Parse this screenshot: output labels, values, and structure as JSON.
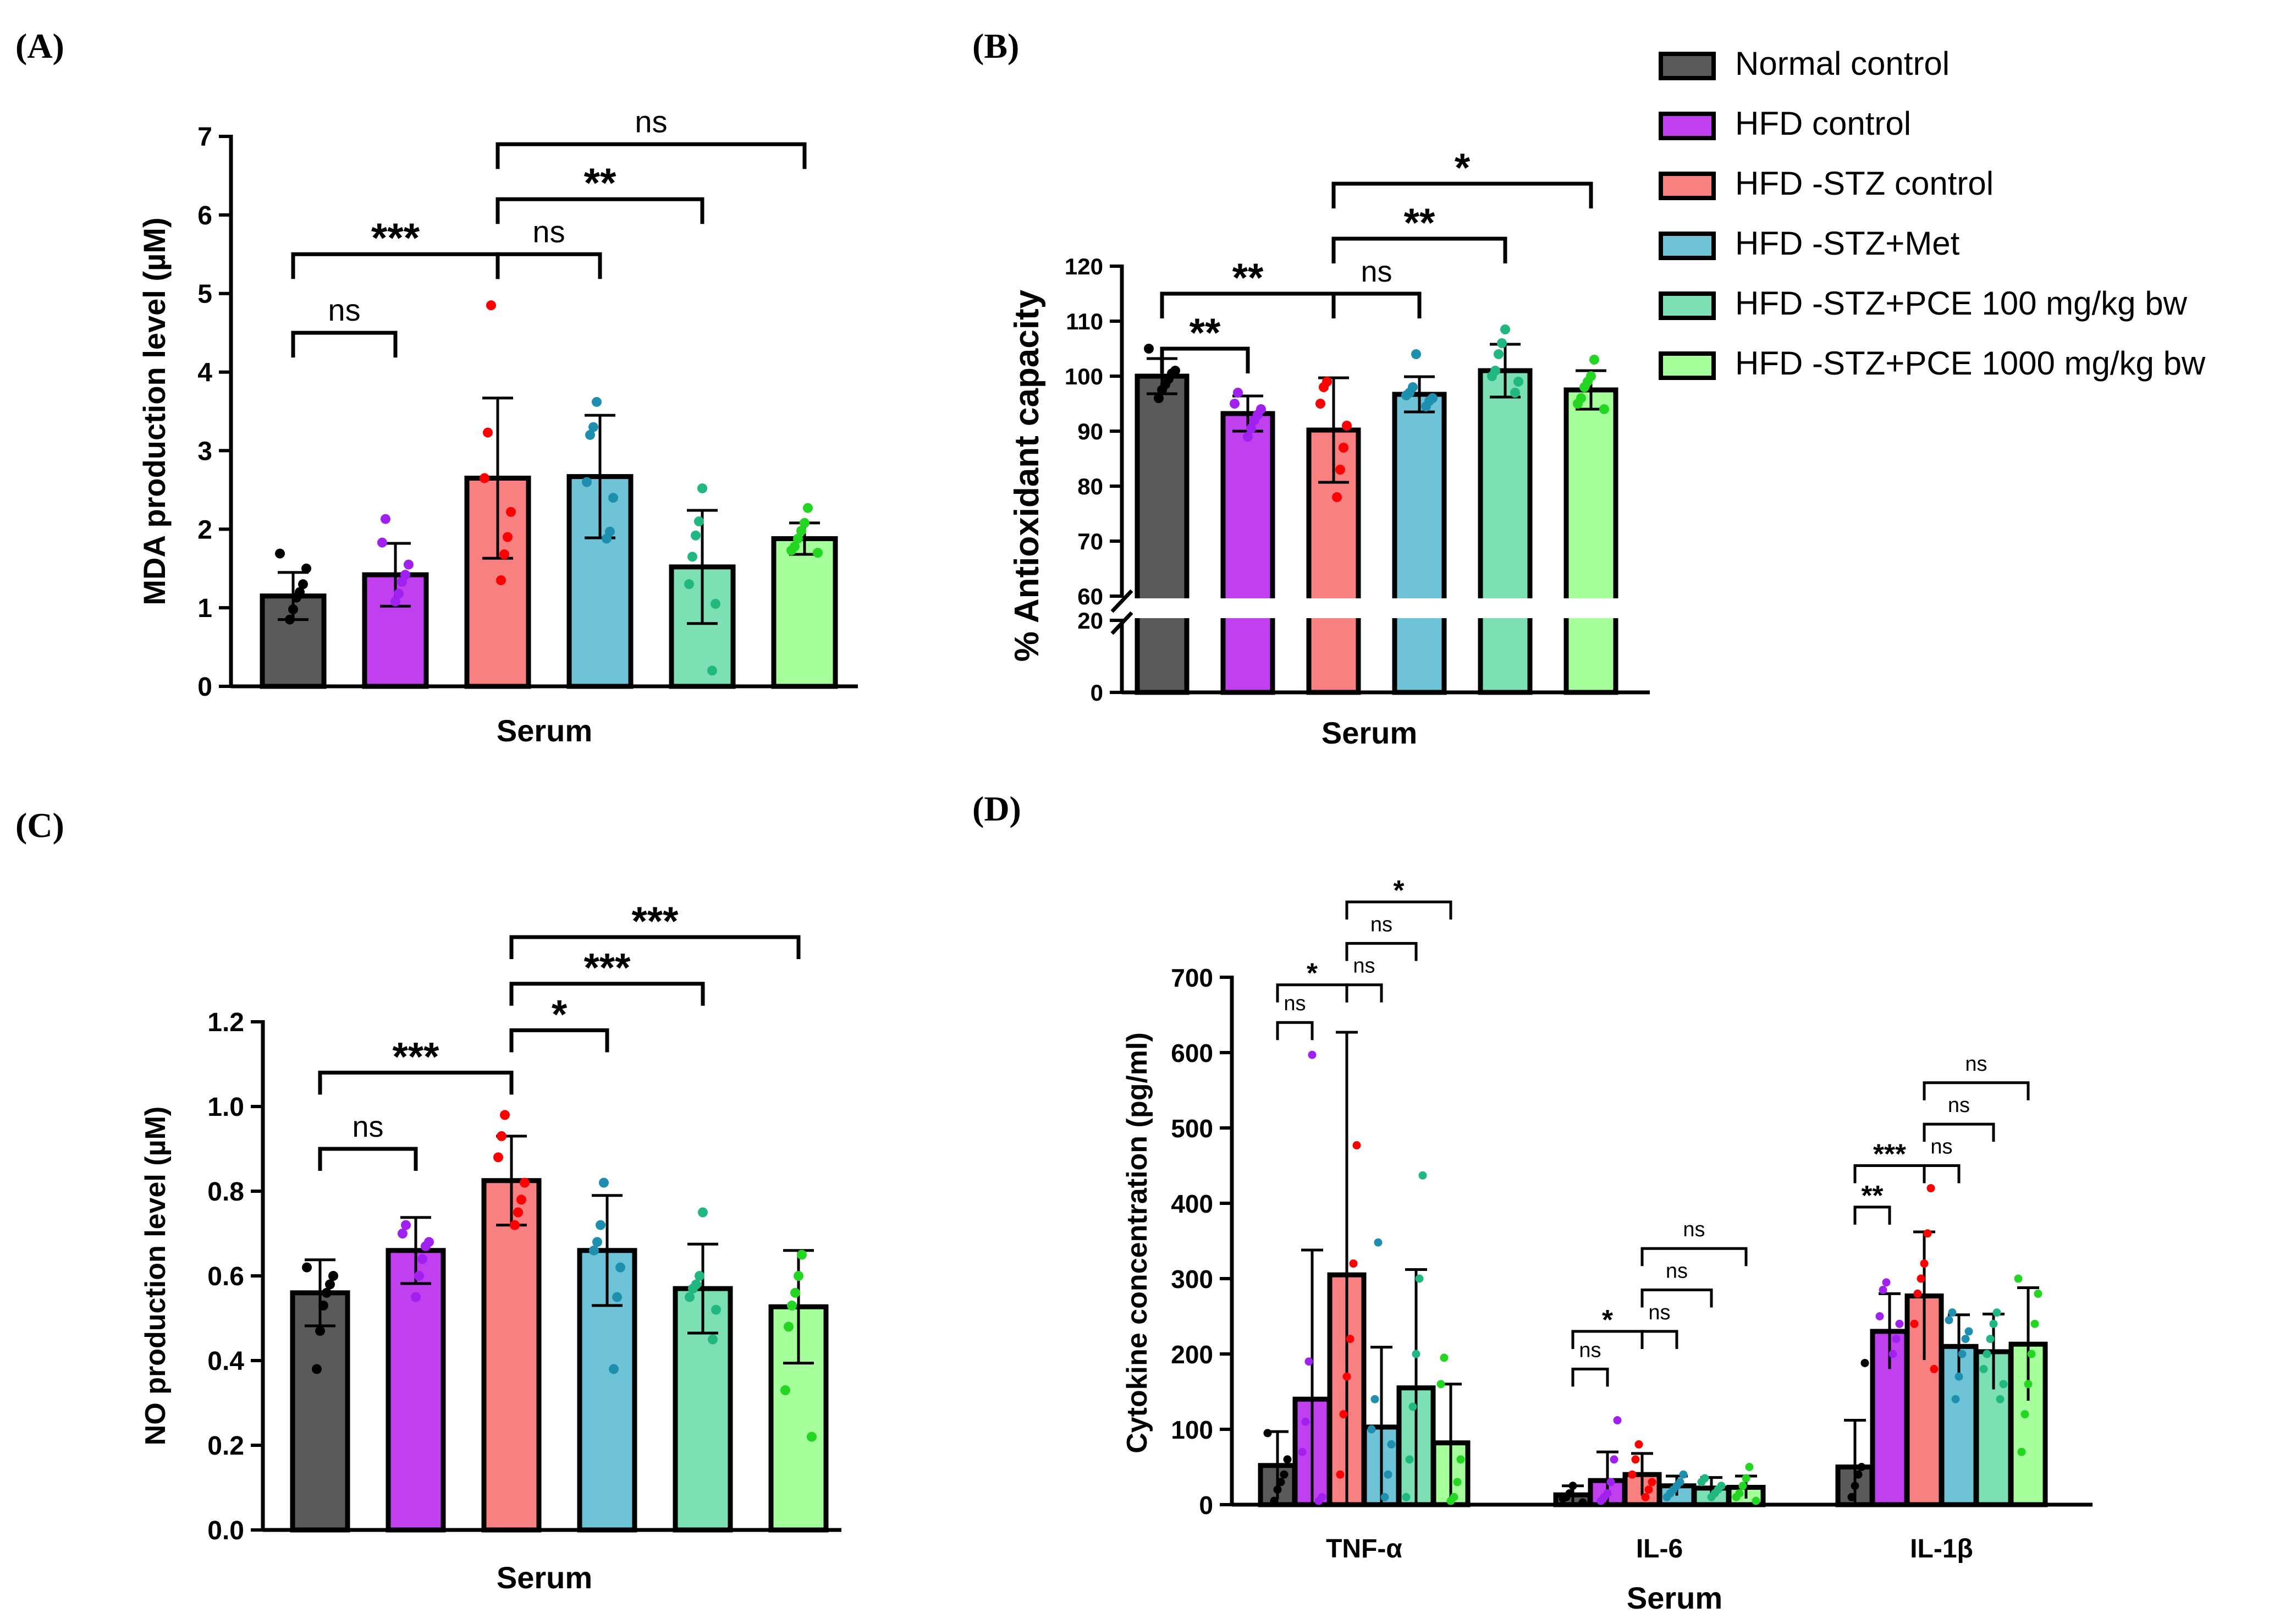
{
  "figure": {
    "legend": [
      {
        "label": "Normal control",
        "color": "#5a5a5a"
      },
      {
        "label": "HFD control",
        "color": "#c040f0"
      },
      {
        "label": "HFD -STZ control",
        "color": "#f98080"
      },
      {
        "label": "HFD -STZ+Met",
        "color": "#6ec3d6"
      },
      {
        "label": "HFD -STZ+PCE 100 mg/kg bw",
        "color": "#7ddfb4"
      },
      {
        "label": "HFD -STZ+PCE 1000 mg/kg bw",
        "color": "#a5ff9a"
      }
    ],
    "dot_colors": [
      "#000000",
      "#a020f0",
      "#ff0000",
      "#1f8fb0",
      "#20b880",
      "#22d622"
    ]
  },
  "chart_data": [
    {
      "panel": "(A)",
      "type": "bar",
      "xlabel": "Serum",
      "ylabel": "MDA production level (µM)",
      "ylim": [
        0,
        7
      ],
      "yticks": [
        "0",
        "1",
        "2",
        "3",
        "4",
        "5",
        "6",
        "7"
      ],
      "categories": [
        "Normal control",
        "HFD control",
        "HFD -STZ control",
        "HFD -STZ+Met",
        "HFD -STZ+PCE 100 mg/kg bw",
        "HFD -STZ+PCE 1000 mg/kg bw"
      ],
      "values": [
        1.15,
        1.42,
        2.65,
        2.67,
        1.52,
        1.88
      ],
      "sd": [
        0.3,
        0.4,
        1.02,
        0.78,
        0.72,
        0.2
      ],
      "points": [
        [
          1.69,
          1.5,
          1.3,
          1.2,
          1.13,
          0.98,
          0.85
        ],
        [
          2.13,
          1.83,
          1.55,
          1.42,
          1.33,
          1.18,
          1.08
        ],
        [
          4.85,
          3.23,
          2.65,
          2.22,
          1.9,
          1.68,
          1.35
        ],
        [
          3.62,
          3.3,
          3.2,
          2.6,
          2.4,
          1.97,
          1.88
        ],
        [
          2.52,
          2.1,
          1.92,
          1.65,
          1.3,
          1.05,
          0.2
        ],
        [
          2.27,
          2.08,
          1.98,
          1.88,
          1.78,
          1.73,
          1.7
        ]
      ],
      "comparisons": [
        {
          "from": 0,
          "to": 1,
          "y": 4.5,
          "label": "ns"
        },
        {
          "from": 0,
          "to": 2,
          "y": 5.5,
          "label": "***"
        },
        {
          "from": 2,
          "to": 3,
          "y": 5.5,
          "label": "ns"
        },
        {
          "from": 2,
          "to": 4,
          "y": 6.2,
          "label": "**"
        },
        {
          "from": 2,
          "to": 5,
          "y": 6.9,
          "label": "ns"
        }
      ]
    },
    {
      "panel": "(B)",
      "type": "bar",
      "xlabel": "Serum",
      "ylabel": "% Antioxidant capacity",
      "broken_axis": {
        "lower": [
          0,
          20
        ],
        "upper": [
          60,
          120
        ]
      },
      "yticks_lower": [
        "0",
        "20"
      ],
      "yticks_upper": [
        "60",
        "70",
        "80",
        "90",
        "100",
        "110",
        "120"
      ],
      "categories": [
        "Normal control",
        "HFD control",
        "HFD -STZ control",
        "HFD -STZ+Met",
        "HFD -STZ+PCE 100 mg/kg bw",
        "HFD -STZ+PCE 1000 mg/kg bw"
      ],
      "values": [
        100.0,
        93.2,
        90.2,
        96.7,
        101.0,
        97.5
      ],
      "sd": [
        3.2,
        3.2,
        9.5,
        3.2,
        4.8,
        3.5
      ],
      "points": [
        [
          105.0,
          101.0,
          100.5,
          99.5,
          98.5,
          97.5,
          96.0
        ],
        [
          97.0,
          95.0,
          94.0,
          93.0,
          92.0,
          90.5,
          89.0
        ],
        [
          99.0,
          98.0,
          95.0,
          91.0,
          87.0,
          83.0,
          78.0
        ],
        [
          104.0,
          98.0,
          97.0,
          96.5,
          96.0,
          95.5,
          94.5
        ],
        [
          108.5,
          106.0,
          104.0,
          101.0,
          100.0,
          99.0,
          97.0
        ],
        [
          103.0,
          100.0,
          99.0,
          98.0,
          96.0,
          95.0,
          94.0
        ]
      ],
      "comparisons": [
        {
          "from": 0,
          "to": 1,
          "y": 105,
          "label": "**"
        },
        {
          "from": 0,
          "to": 2,
          "y": 115,
          "label": "**"
        },
        {
          "from": 2,
          "to": 3,
          "y": 115,
          "label": "ns"
        },
        {
          "from": 2,
          "to": 4,
          "y": 125,
          "label": "**"
        },
        {
          "from": 2,
          "to": 5,
          "y": 135,
          "label": "*"
        }
      ]
    },
    {
      "panel": "(C)",
      "type": "bar",
      "xlabel": "Serum",
      "ylabel": "NO production level (µM)",
      "ylim": [
        0,
        1.2
      ],
      "yticks": [
        "0.0",
        "0.2",
        "0.4",
        "0.6",
        "0.8",
        "1.0",
        "1.2"
      ],
      "categories": [
        "Normal control",
        "HFD control",
        "HFD -STZ control",
        "HFD -STZ+Met",
        "HFD -STZ+PCE 100 mg/kg bw",
        "HFD -STZ+PCE 1000 mg/kg bw"
      ],
      "values": [
        0.56,
        0.66,
        0.825,
        0.66,
        0.57,
        0.527
      ],
      "sd": [
        0.078,
        0.078,
        0.105,
        0.13,
        0.105,
        0.133
      ],
      "points": [
        [
          0.62,
          0.6,
          0.58,
          0.56,
          0.53,
          0.47,
          0.38
        ],
        [
          0.72,
          0.7,
          0.68,
          0.67,
          0.64,
          0.6,
          0.55
        ],
        [
          0.98,
          0.93,
          0.88,
          0.82,
          0.78,
          0.75,
          0.72
        ],
        [
          0.82,
          0.72,
          0.68,
          0.66,
          0.62,
          0.55,
          0.38
        ],
        [
          0.75,
          0.6,
          0.58,
          0.57,
          0.55,
          0.52,
          0.45
        ],
        [
          0.65,
          0.6,
          0.56,
          0.53,
          0.48,
          0.33,
          0.22
        ]
      ],
      "comparisons": [
        {
          "from": 0,
          "to": 1,
          "y": 0.9,
          "label": "ns"
        },
        {
          "from": 0,
          "to": 2,
          "y": 1.08,
          "label": "***"
        },
        {
          "from": 2,
          "to": 3,
          "y": 1.18,
          "label": "*"
        },
        {
          "from": 2,
          "to": 4,
          "y": 1.29,
          "label": "***"
        },
        {
          "from": 2,
          "to": 5,
          "y": 1.4,
          "label": "***"
        }
      ]
    },
    {
      "panel": "(D)",
      "type": "bar",
      "xlabel": "Serum",
      "ylabel": "Cytokine concentration (pg/ml)",
      "ylim": [
        0,
        700
      ],
      "yticks": [
        "0",
        "100",
        "200",
        "300",
        "400",
        "500",
        "600",
        "700"
      ],
      "categories": [
        "TNF-α",
        "IL-6",
        "IL-1β"
      ],
      "series": [
        {
          "name": "Normal control",
          "values": [
            52,
            13,
            50
          ],
          "sd": [
            45,
            12,
            62
          ],
          "points": [
            [
              95,
              60,
              40,
              30,
              20,
              5
            ],
            [
              25,
              15,
              10,
              8,
              3
            ],
            [
              188,
              50,
              40,
              25,
              10
            ]
          ]
        },
        {
          "name": "HFD control",
          "values": [
            140,
            32,
            230
          ],
          "sd": [
            198,
            38,
            50
          ],
          "points": [
            [
              597,
              190,
              110,
              70,
              10,
              5
            ],
            [
              112,
              60,
              30,
              15,
              10,
              5
            ],
            [
              295,
              285,
              250,
              240,
              220,
              200
            ]
          ]
        },
        {
          "name": "HFD -STZ control",
          "values": [
            305,
            40,
            277
          ],
          "sd": [
            322,
            28,
            85
          ],
          "points": [
            [
              477,
              320,
              220,
              170,
              120,
              40
            ],
            [
              80,
              60,
              40,
              30,
              20,
              10
            ],
            [
              420,
              360,
              320,
              300,
              280,
              240,
              180
            ]
          ]
        },
        {
          "name": "HFD -STZ+Met",
          "values": [
            103,
            25,
            210
          ],
          "sd": [
            106,
            13,
            42
          ],
          "points": [
            [
              348,
              140,
              100,
              80,
              40,
              10
            ],
            [
              40,
              30,
              25,
              20,
              15,
              10
            ],
            [
              255,
              245,
              230,
              220,
              200,
              170,
              140
            ]
          ]
        },
        {
          "name": "HFD -STZ+PCE 100 mg/kg bw",
          "values": [
            155,
            22,
            203
          ],
          "sd": [
            157,
            14,
            50
          ],
          "points": [
            [
              437,
              300,
              200,
              130,
              60,
              10
            ],
            [
              35,
              30,
              25,
              20,
              15,
              10
            ],
            [
              255,
              240,
              220,
              200,
              180,
              160,
              140
            ]
          ]
        },
        {
          "name": "HFD -STZ+PCE 1000 mg/kg bw",
          "values": [
            82,
            23,
            213
          ],
          "sd": [
            78,
            15,
            75
          ],
          "points": [
            [
              195,
              160,
              60,
              30,
              10,
              5
            ],
            [
              50,
              35,
              25,
              15,
              10,
              5
            ],
            [
              300,
              280,
              240,
              200,
              160,
              120,
              70
            ]
          ]
        }
      ],
      "comparisons": [
        {
          "group": 0,
          "from": 0,
          "to": 1,
          "y": 640,
          "label": "ns"
        },
        {
          "group": 0,
          "from": 0,
          "to": 2,
          "y": 690,
          "label": "*"
        },
        {
          "group": 0,
          "from": 2,
          "to": 3,
          "y": 690,
          "label": "ns"
        },
        {
          "group": 0,
          "from": 2,
          "to": 4,
          "y": 745,
          "label": "ns"
        },
        {
          "group": 0,
          "from": 2,
          "to": 5,
          "y": 800,
          "label": "*"
        },
        {
          "group": 1,
          "from": 0,
          "to": 1,
          "y": 180,
          "label": "ns"
        },
        {
          "group": 1,
          "from": 0,
          "to": 2,
          "y": 230,
          "label": "*"
        },
        {
          "group": 1,
          "from": 2,
          "to": 3,
          "y": 230,
          "label": "ns"
        },
        {
          "group": 1,
          "from": 2,
          "to": 4,
          "y": 285,
          "label": "ns"
        },
        {
          "group": 1,
          "from": 2,
          "to": 5,
          "y": 340,
          "label": "ns"
        },
        {
          "group": 2,
          "from": 0,
          "to": 1,
          "y": 395,
          "label": "**"
        },
        {
          "group": 2,
          "from": 0,
          "to": 2,
          "y": 450,
          "label": "***"
        },
        {
          "group": 2,
          "from": 2,
          "to": 3,
          "y": 450,
          "label": "ns"
        },
        {
          "group": 2,
          "from": 2,
          "to": 4,
          "y": 505,
          "label": "ns"
        },
        {
          "group": 2,
          "from": 2,
          "to": 5,
          "y": 560,
          "label": "ns"
        }
      ]
    }
  ]
}
